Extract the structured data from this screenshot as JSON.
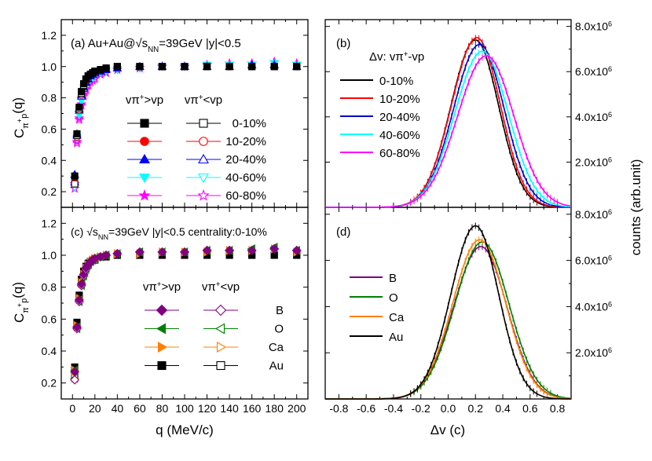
{
  "chart_data": [
    {
      "panel": "a",
      "type": "scatter",
      "title": "(a) Au+Au@√sNN=39GeV |y|<0.5",
      "xlabel": "",
      "ylabel": "Cπ+p(q)",
      "xlim": [
        -10,
        210
      ],
      "ylim": [
        0.1,
        1.3
      ],
      "xticks": [],
      "yticks": [
        0.2,
        0.4,
        0.6,
        0.8,
        1.0,
        1.2
      ],
      "ytick_labels": [
        "0.2",
        "0.4",
        "0.6",
        "0.8",
        "1.0",
        "1.2"
      ],
      "legend_headers": [
        "vπ+>vp",
        "vπ+<vp"
      ],
      "x": [
        2,
        4,
        6,
        8,
        10,
        12,
        14,
        16,
        18,
        20,
        25,
        30,
        40,
        60,
        80,
        100,
        120,
        140,
        160,
        180,
        200
      ],
      "series": [
        {
          "name": "0-10%",
          "color": "#000000",
          "marker": "square",
          "values_gt": [
            0.3,
            0.57,
            0.74,
            0.84,
            0.89,
            0.92,
            0.94,
            0.95,
            0.96,
            0.97,
            0.98,
            0.99,
            1.0,
            1.0,
            1.0,
            1.0,
            1.0,
            1.0,
            1.0,
            1.0,
            1.0
          ],
          "values_lt": [
            0.25,
            0.56,
            0.73,
            0.83,
            0.88,
            0.92,
            0.94,
            0.95,
            0.96,
            0.97,
            0.98,
            0.99,
            1.0,
            1.0,
            1.0,
            1.0,
            1.0,
            1.0,
            1.0,
            1.0,
            1.0
          ]
        },
        {
          "name": "10-20%",
          "color": "#ff0000",
          "marker": "circle",
          "values_gt": [
            0.29,
            0.56,
            0.73,
            0.83,
            0.88,
            0.91,
            0.93,
            0.95,
            0.96,
            0.96,
            0.98,
            0.99,
            1.0,
            1.0,
            1.0,
            1.0,
            1.0,
            1.0,
            1.0,
            1.0,
            1.0
          ],
          "values_lt": [
            0.25,
            0.55,
            0.72,
            0.82,
            0.88,
            0.91,
            0.93,
            0.95,
            0.96,
            0.96,
            0.98,
            0.99,
            1.0,
            1.0,
            1.0,
            1.0,
            1.0,
            1.0,
            1.0,
            1.0,
            1.0
          ]
        },
        {
          "name": "20-40%",
          "color": "#0000ff",
          "marker": "triangle-up",
          "values_gt": [
            0.31,
            0.57,
            0.73,
            0.82,
            0.87,
            0.9,
            0.92,
            0.94,
            0.95,
            0.96,
            0.97,
            0.98,
            0.99,
            1.0,
            1.0,
            1.0,
            1.0,
            1.0,
            1.01,
            1.01,
            1.0
          ],
          "values_lt": [
            0.26,
            0.56,
            0.72,
            0.81,
            0.86,
            0.9,
            0.92,
            0.94,
            0.95,
            0.96,
            0.97,
            0.98,
            0.99,
            1.0,
            1.0,
            1.0,
            1.0,
            1.0,
            1.01,
            1.01,
            1.0
          ]
        },
        {
          "name": "40-60%",
          "color": "#00ffff",
          "marker": "triangle-down",
          "values_gt": [
            0.27,
            0.55,
            0.7,
            0.79,
            0.85,
            0.88,
            0.91,
            0.92,
            0.94,
            0.94,
            0.96,
            0.97,
            0.98,
            0.99,
            1.0,
            1.0,
            1.01,
            1.01,
            1.01,
            1.02,
            1.01
          ],
          "values_lt": [
            0.23,
            0.54,
            0.69,
            0.78,
            0.84,
            0.88,
            0.9,
            0.92,
            0.93,
            0.94,
            0.96,
            0.97,
            0.98,
            0.99,
            1.0,
            1.0,
            1.01,
            1.01,
            1.01,
            1.02,
            1.01
          ],
          "ghost": false
        },
        {
          "name": "60-80%",
          "color": "#ff00ff",
          "marker": "star",
          "values_gt": [
            0.25,
            0.52,
            0.67,
            0.76,
            0.82,
            0.86,
            0.89,
            0.9,
            0.92,
            0.93,
            0.95,
            0.96,
            0.98,
            0.99,
            1.0,
            1.0,
            1.01,
            1.02,
            1.02,
            1.03,
            1.02
          ],
          "values_lt": [
            0.22,
            0.51,
            0.66,
            0.75,
            0.81,
            0.85,
            0.88,
            0.9,
            0.91,
            0.92,
            0.95,
            0.96,
            0.98,
            0.99,
            1.0,
            1.0,
            1.01,
            1.02,
            1.02,
            1.03,
            1.02
          ]
        }
      ]
    },
    {
      "panel": "b",
      "type": "line",
      "title": "(b)",
      "subtitle": "Δv: vπ+-vp",
      "xlabel": "",
      "ylabel": "",
      "xlim": [
        -0.9,
        0.9
      ],
      "ylim": [
        0,
        8300000
      ],
      "yticks_right": [
        2000000,
        4000000,
        6000000,
        8000000
      ],
      "ytick_labels": [
        "2.0x10⁶",
        "4.0x10⁶",
        "6.0x10⁶",
        "8.0x10⁶"
      ],
      "series": [
        {
          "name": "0-10%",
          "color": "#000000",
          "peak_x": 0.2,
          "peak": 7400000,
          "sigma_left": 0.18,
          "sigma_right": 0.17
        },
        {
          "name": "10-20%",
          "color": "#ff0000",
          "peak_x": 0.21,
          "peak": 7500000,
          "sigma_left": 0.185,
          "sigma_right": 0.172
        },
        {
          "name": "20-40%",
          "color": "#0000cc",
          "peak_x": 0.23,
          "peak": 7200000,
          "sigma_left": 0.19,
          "sigma_right": 0.18
        },
        {
          "name": "40-60%",
          "color": "#00ffff",
          "peak_x": 0.25,
          "peak": 6900000,
          "sigma_left": 0.2,
          "sigma_right": 0.19
        },
        {
          "name": "60-80%",
          "color": "#ff00ff",
          "peak_x": 0.28,
          "peak": 6700000,
          "sigma_left": 0.21,
          "sigma_right": 0.2
        }
      ]
    },
    {
      "panel": "c",
      "type": "scatter",
      "title": "(c) √sNN=39GeV |y|<0.5 centrality:0-10%",
      "xlabel": "q (MeV/c)",
      "ylabel": "Cπ+p(q)",
      "xlim": [
        -10,
        210
      ],
      "ylim": [
        0.1,
        1.3
      ],
      "xticks": [
        0,
        20,
        40,
        60,
        80,
        100,
        120,
        140,
        160,
        180,
        200
      ],
      "xtick_labels": [
        "0",
        "20",
        "40",
        "60",
        "80",
        "100",
        "120",
        "140",
        "160",
        "180",
        "200"
      ],
      "yticks": [
        0.2,
        0.4,
        0.6,
        0.8,
        1.0,
        1.2
      ],
      "ytick_labels": [
        "0.2",
        "0.4",
        "0.6",
        "0.8",
        "1.0",
        "1.2"
      ],
      "legend_headers": [
        "vπ+>vp",
        "vπ+<vp"
      ],
      "x": [
        2,
        4,
        6,
        8,
        10,
        12,
        14,
        16,
        18,
        20,
        25,
        30,
        40,
        60,
        80,
        100,
        120,
        140,
        160,
        180,
        200
      ],
      "series": [
        {
          "name": "B",
          "color": "#800080",
          "marker": "diamond",
          "values_gt": [
            0.27,
            0.55,
            0.72,
            0.82,
            0.88,
            0.92,
            0.94,
            0.96,
            0.97,
            0.98,
            0.99,
            1.0,
            1.01,
            1.02,
            1.02,
            1.02,
            1.03,
            1.03,
            1.03,
            1.04,
            1.03
          ],
          "values_lt": [
            0.22,
            0.54,
            0.71,
            0.81,
            0.87,
            0.91,
            0.94,
            0.96,
            0.97,
            0.98,
            0.99,
            1.0,
            1.01,
            1.02,
            1.02,
            1.02,
            1.03,
            1.03,
            1.03,
            1.04,
            1.03
          ]
        },
        {
          "name": "O",
          "color": "#008000",
          "marker": "triangle-left",
          "values_gt": [
            0.28,
            0.55,
            0.72,
            0.82,
            0.88,
            0.92,
            0.94,
            0.96,
            0.97,
            0.98,
            0.99,
            1.0,
            1.01,
            1.02,
            1.02,
            1.02,
            1.03,
            1.03,
            1.04,
            1.05,
            1.03
          ],
          "values_lt": [
            0.23,
            0.54,
            0.71,
            0.81,
            0.87,
            0.91,
            0.94,
            0.96,
            0.97,
            0.98,
            0.99,
            1.0,
            1.01,
            1.02,
            1.02,
            1.02,
            1.03,
            1.03,
            1.04,
            1.05,
            1.03
          ]
        },
        {
          "name": "Ca",
          "color": "#ff8000",
          "marker": "triangle-right",
          "values_gt": [
            0.28,
            0.56,
            0.73,
            0.83,
            0.88,
            0.92,
            0.94,
            0.96,
            0.97,
            0.98,
            0.99,
            1.0,
            1.01,
            1.01,
            1.02,
            1.02,
            1.02,
            1.03,
            1.03,
            1.04,
            1.02
          ],
          "values_lt": [
            0.23,
            0.55,
            0.72,
            0.82,
            0.87,
            0.91,
            0.94,
            0.96,
            0.97,
            0.98,
            0.99,
            1.0,
            1.01,
            1.01,
            1.02,
            1.02,
            1.02,
            1.03,
            1.03,
            1.04,
            1.02
          ]
        },
        {
          "name": "Au",
          "color": "#000000",
          "marker": "square",
          "values_gt": [
            0.3,
            0.58,
            0.75,
            0.85,
            0.9,
            0.93,
            0.95,
            0.96,
            0.97,
            0.98,
            0.99,
            0.99,
            1.0,
            1.0,
            1.0,
            1.0,
            1.0,
            1.0,
            1.0,
            1.0,
            1.0
          ],
          "values_lt": [
            0.24,
            0.57,
            0.74,
            0.84,
            0.89,
            0.92,
            0.94,
            0.96,
            0.97,
            0.97,
            0.99,
            0.99,
            1.0,
            1.0,
            1.0,
            1.0,
            1.0,
            1.0,
            1.0,
            1.0,
            1.0
          ]
        }
      ]
    },
    {
      "panel": "d",
      "type": "line",
      "title": "(d)",
      "xlabel": "Δv (c)",
      "ylabel": "counts (arb.unit)",
      "xlim": [
        -0.9,
        0.9
      ],
      "ylim": [
        0,
        8300000
      ],
      "xticks": [
        -0.8,
        -0.6,
        -0.4,
        -0.2,
        0.0,
        0.2,
        0.4,
        0.6,
        0.8
      ],
      "xtick_labels": [
        "-0.8",
        "-0.6",
        "-0.4",
        "-0.2",
        "0.0",
        "0.2",
        "0.4",
        "0.6",
        "0.8"
      ],
      "yticks_right": [
        2000000,
        4000000,
        6000000,
        8000000
      ],
      "ytick_labels": [
        "2.0x10⁶",
        "4.0x10⁶",
        "6.0x10⁶",
        "8.0x10⁶"
      ],
      "series": [
        {
          "name": "B",
          "color": "#800080",
          "peak_x": 0.24,
          "peak": 6600000,
          "sigma_left": 0.2,
          "sigma_right": 0.19
        },
        {
          "name": "O",
          "color": "#008000",
          "peak_x": 0.25,
          "peak": 6800000,
          "sigma_left": 0.2,
          "sigma_right": 0.195
        },
        {
          "name": "Ca",
          "color": "#ff8000",
          "peak_x": 0.23,
          "peak": 6900000,
          "sigma_left": 0.195,
          "sigma_right": 0.19
        },
        {
          "name": "Au",
          "color": "#000000",
          "peak_x": 0.2,
          "peak": 7500000,
          "sigma_left": 0.18,
          "sigma_right": 0.17
        }
      ]
    }
  ]
}
